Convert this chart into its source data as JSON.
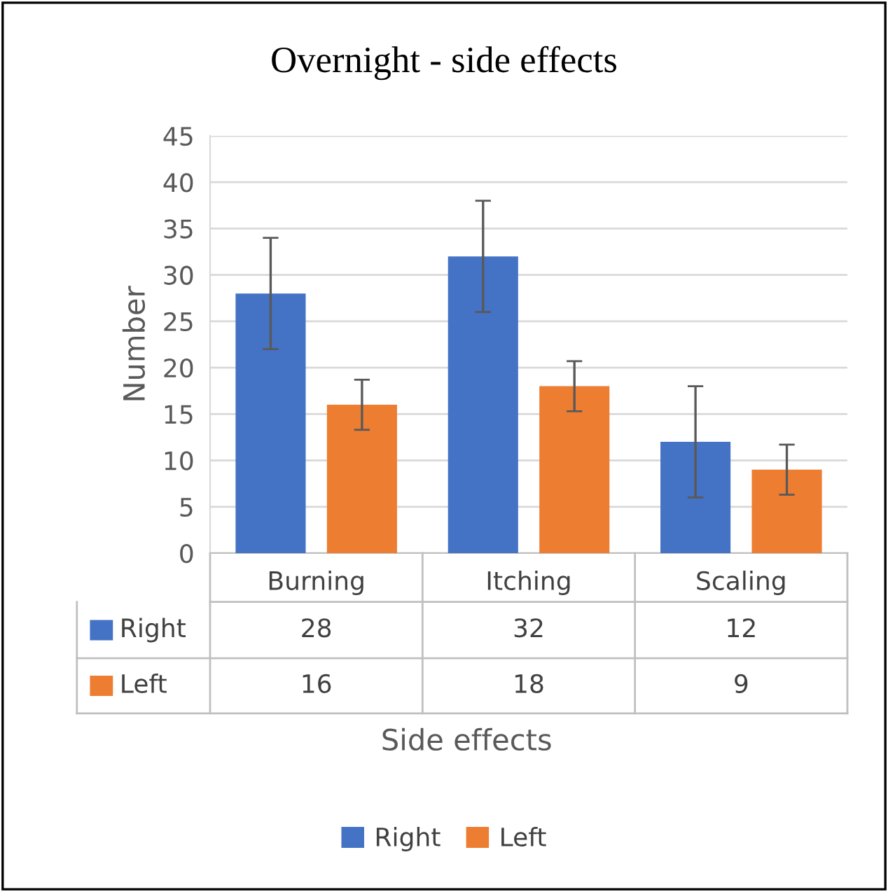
{
  "chart_data": {
    "type": "bar",
    "title": "Overnight - side effects",
    "xlabel": "Side effects",
    "ylabel": "Number",
    "categories": [
      "Burning",
      "Itching",
      "Scaling"
    ],
    "series": [
      {
        "name": "Right",
        "color": "#4472c4",
        "values": [
          28,
          32,
          12
        ],
        "errors": [
          6,
          6,
          6
        ]
      },
      {
        "name": "Left",
        "color": "#ed7d31",
        "values": [
          16,
          18,
          9
        ],
        "errors": [
          2.7,
          2.7,
          2.7
        ]
      }
    ],
    "ylim": [
      0,
      45
    ],
    "yticks": [
      0,
      5,
      10,
      15,
      20,
      25,
      30,
      35,
      40,
      45
    ],
    "grid": "y",
    "legend": "bottom",
    "data_labels": true
  }
}
